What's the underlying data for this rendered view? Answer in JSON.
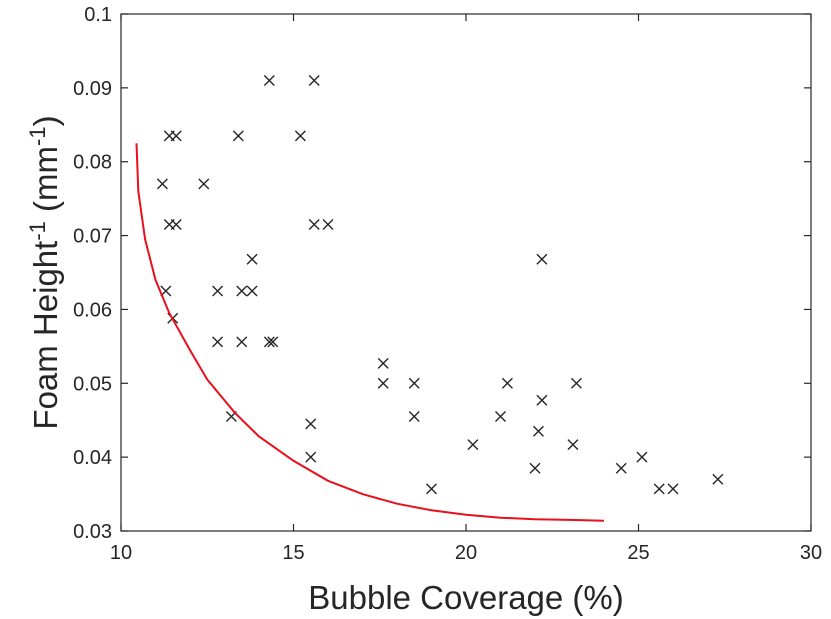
{
  "chart_data": {
    "type": "scatter",
    "xlabel": "Bubble Coverage (%)",
    "ylabel": {
      "main": "Foam Height",
      "sup": "-1",
      "unit": " (mm",
      "unit_sup": "-1",
      "close": ")"
    },
    "xlim": [
      10,
      30
    ],
    "ylim": [
      0.03,
      0.1
    ],
    "xticks": [
      "10",
      "15",
      "20",
      "25",
      "30"
    ],
    "yticks": [
      "0.03",
      "0.04",
      "0.05",
      "0.06",
      "0.07",
      "0.08",
      "0.09",
      "0.1"
    ],
    "grid": false,
    "legend": "none",
    "marker_color": "#262626",
    "curve_color": "#e8101b",
    "series": [
      {
        "type": "scatter",
        "points": [
          [
            14.3,
            0.091
          ],
          [
            15.6,
            0.091
          ],
          [
            11.4,
            0.0835
          ],
          [
            11.6,
            0.0835
          ],
          [
            13.4,
            0.0835
          ],
          [
            15.2,
            0.0835
          ],
          [
            11.2,
            0.077
          ],
          [
            12.4,
            0.077
          ],
          [
            11.4,
            0.0715
          ],
          [
            11.6,
            0.0715
          ],
          [
            15.6,
            0.0715
          ],
          [
            16.0,
            0.0715
          ],
          [
            13.8,
            0.0668
          ],
          [
            22.2,
            0.0668
          ],
          [
            11.3,
            0.0625
          ],
          [
            12.8,
            0.0625
          ],
          [
            13.5,
            0.0625
          ],
          [
            13.8,
            0.0625
          ],
          [
            11.5,
            0.0588
          ],
          [
            12.8,
            0.0556
          ],
          [
            13.5,
            0.0556
          ],
          [
            14.3,
            0.0556
          ],
          [
            14.4,
            0.0556
          ],
          [
            17.6,
            0.0527
          ],
          [
            17.6,
            0.05
          ],
          [
            18.5,
            0.05
          ],
          [
            21.2,
            0.05
          ],
          [
            23.2,
            0.05
          ],
          [
            22.2,
            0.0477
          ],
          [
            13.2,
            0.0455
          ],
          [
            18.5,
            0.0455
          ],
          [
            21.0,
            0.0455
          ],
          [
            15.5,
            0.0445
          ],
          [
            22.1,
            0.0435
          ],
          [
            20.2,
            0.0417
          ],
          [
            23.1,
            0.0417
          ],
          [
            15.5,
            0.04
          ],
          [
            25.1,
            0.04
          ],
          [
            22.0,
            0.0385
          ],
          [
            24.5,
            0.0385
          ],
          [
            27.3,
            0.037
          ],
          [
            19.0,
            0.0357
          ],
          [
            25.6,
            0.0357
          ],
          [
            26.0,
            0.0357
          ]
        ]
      },
      {
        "type": "line",
        "points": [
          [
            10.45,
            0.0825
          ],
          [
            10.5,
            0.076
          ],
          [
            10.7,
            0.0695
          ],
          [
            11.0,
            0.064
          ],
          [
            11.4,
            0.0595
          ],
          [
            12.0,
            0.0545
          ],
          [
            12.5,
            0.0505
          ],
          [
            13.3,
            0.046
          ],
          [
            14.0,
            0.0428
          ],
          [
            15.0,
            0.0395
          ],
          [
            16.0,
            0.0368
          ],
          [
            17.0,
            0.035
          ],
          [
            18.0,
            0.0337
          ],
          [
            19.0,
            0.0328
          ],
          [
            20.0,
            0.0322
          ],
          [
            21.0,
            0.0318
          ],
          [
            22.0,
            0.0316
          ],
          [
            23.0,
            0.0315
          ],
          [
            24.0,
            0.0314
          ]
        ]
      }
    ]
  }
}
